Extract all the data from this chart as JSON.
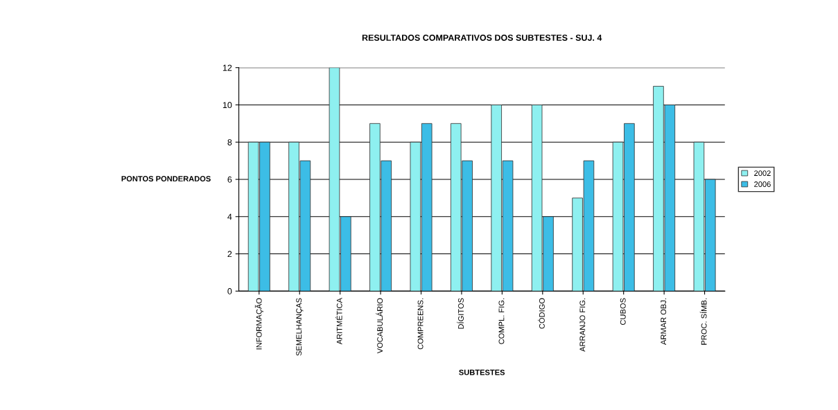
{
  "chart_data": {
    "type": "bar",
    "title": "RESULTADOS COMPARATIVOS DOS SUBTESTES - SUJ. 4",
    "xlabel": "SUBTESTES",
    "ylabel": "PONTOS PONDERADOS",
    "categories": [
      "INFORMAÇÃO",
      "SEMELHANÇAS",
      "ARITMÉTICA",
      "VOCABULÁRIO",
      "COMPREENS.",
      "DÍGITOS",
      "COMPL. FIG.",
      "CÓDIGO",
      "ARRANJO FIG.",
      "CUBOS",
      "ARMAR OBJ.",
      "PROC. SÍMB."
    ],
    "series": [
      {
        "name": "2002",
        "color": "#8ef0f0",
        "values": [
          8,
          8,
          12,
          9,
          8,
          9,
          10,
          10,
          5,
          8,
          11,
          8
        ]
      },
      {
        "name": "2006",
        "color": "#3cbde6",
        "values": [
          8,
          7,
          4,
          7,
          9,
          7,
          7,
          4,
          7,
          9,
          10,
          6
        ]
      }
    ],
    "ylim": [
      0,
      12
    ],
    "yticks": [
      0,
      2,
      4,
      6,
      8,
      10,
      12
    ],
    "grid": "y",
    "legend": "right"
  }
}
